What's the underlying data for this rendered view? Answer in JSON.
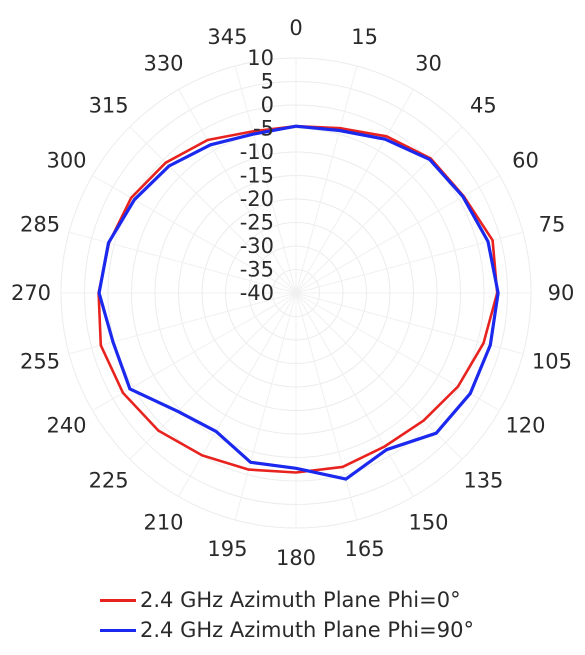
{
  "chart_data": {
    "type": "polar-line",
    "title": "",
    "angular_ticks": [
      "0",
      "15",
      "30",
      "45",
      "60",
      "75",
      "90",
      "105",
      "120",
      "135",
      "150",
      "165",
      "180",
      "195",
      "210",
      "225",
      "240",
      "255",
      "270",
      "285",
      "300",
      "315",
      "330",
      "345"
    ],
    "radial_ticks": [
      "10",
      "5",
      "0",
      "-5",
      "-10",
      "-15",
      "-20",
      "-25",
      "-30",
      "-35",
      "-40"
    ],
    "radial_range": [
      -40,
      10
    ],
    "radial_tick_step": 5,
    "angle_step_deg": 15,
    "angle_direction": "clockwise",
    "zero_angle": "top",
    "grid": true,
    "legend_position": "bottom",
    "series": [
      {
        "name": "2.4 GHz Azimuth Plane Phi=0°",
        "color": "#e8231f",
        "angles": [
          0,
          15,
          30,
          45,
          60,
          75,
          90,
          105,
          120,
          135,
          150,
          165,
          180,
          195,
          210,
          225,
          240,
          255,
          270,
          285,
          300,
          315,
          330,
          345
        ],
        "values": [
          -4.5,
          -3.7,
          -1.5,
          0.5,
          1.2,
          3.3,
          2.8,
          1.3,
          -0.2,
          -1.6,
          -2.3,
          -1.7,
          -1.8,
          -1.1,
          -0.1,
          1.4,
          2.5,
          3.0,
          2.0,
          1.2,
          0.5,
          -0.8,
          -2.4,
          -4.4
        ]
      },
      {
        "name": "2.4 GHz Azimuth Plane Phi=90°",
        "color": "#1b28ee",
        "angles": [
          0,
          15,
          30,
          45,
          60,
          75,
          90,
          105,
          120,
          135,
          150,
          165,
          180,
          195,
          210,
          225,
          240,
          255,
          270,
          285,
          300,
          315,
          330,
          345
        ],
        "values": [
          -4.5,
          -4.2,
          -2.2,
          0.2,
          1.0,
          2.3,
          3.0,
          2.8,
          2.8,
          2.2,
          -1.5,
          1.0,
          -2.7,
          -2.7,
          -6.0,
          -4.4,
          0.8,
          0.3,
          1.9,
          1.3,
          -0.3,
          -1.8,
          -3.6,
          -5.0
        ]
      }
    ]
  }
}
